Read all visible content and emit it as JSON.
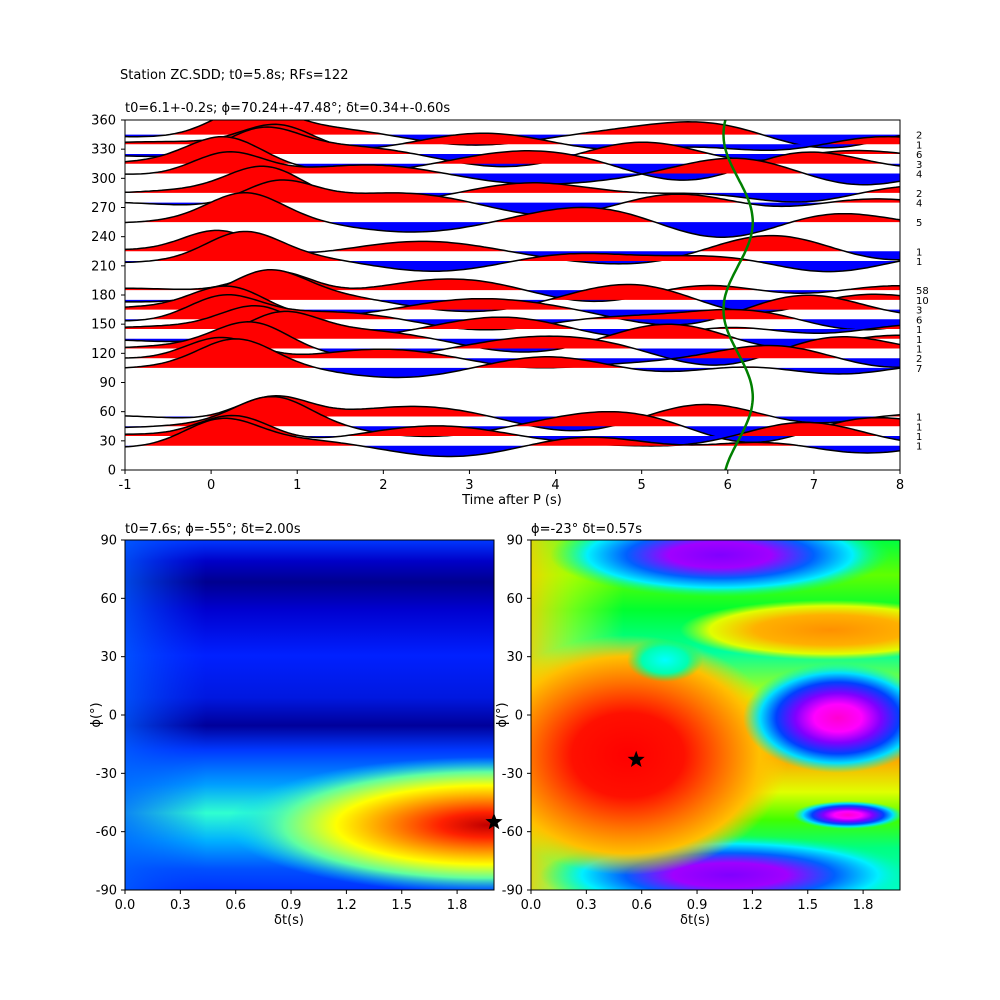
{
  "suptitle": "Station ZC.SDD; t0=5.8s; RFs=122",
  "chart_data": [
    {
      "type": "line",
      "title": "t0=6.1+-0.2s; ϕ=70.24+-47.48°; δt=0.34+-0.60s",
      "xlabel": "Time after P (s)",
      "ylabel": "",
      "xlim": [
        -1,
        8
      ],
      "ylim": [
        0,
        360
      ],
      "xticks": [
        "-1",
        "0",
        "1",
        "2",
        "3",
        "4",
        "5",
        "6",
        "7",
        "8"
      ],
      "yticks": [
        "0",
        "30",
        "60",
        "90",
        "120",
        "150",
        "180",
        "210",
        "240",
        "270",
        "300",
        "330",
        "360"
      ],
      "positive_fill_color": "#ff0000",
      "negative_fill_color": "#0000ff",
      "fit_curve_color": "#008000",
      "traces": [
        {
          "baz": 345,
          "count": "2"
        },
        {
          "baz": 335,
          "count": "1"
        },
        {
          "baz": 325,
          "count": "6"
        },
        {
          "baz": 315,
          "count": "3"
        },
        {
          "baz": 305,
          "count": "4"
        },
        {
          "baz": 285,
          "count": "2"
        },
        {
          "baz": 275,
          "count": "4"
        },
        {
          "baz": 255,
          "count": "5"
        },
        {
          "baz": 225,
          "count": "1"
        },
        {
          "baz": 215,
          "count": "1"
        },
        {
          "baz": 185,
          "count": "58"
        },
        {
          "baz": 175,
          "count": "10"
        },
        {
          "baz": 165,
          "count": "3"
        },
        {
          "baz": 155,
          "count": "6"
        },
        {
          "baz": 145,
          "count": "1"
        },
        {
          "baz": 135,
          "count": "1"
        },
        {
          "baz": 125,
          "count": "1"
        },
        {
          "baz": 115,
          "count": "2"
        },
        {
          "baz": 105,
          "count": "7"
        },
        {
          "baz": 55,
          "count": "1"
        },
        {
          "baz": 45,
          "count": "1"
        },
        {
          "baz": 35,
          "count": "1"
        },
        {
          "baz": 25,
          "count": "1"
        }
      ]
    },
    {
      "type": "heatmap",
      "title": "t0=7.6s; ϕ=-55°; δt=2.00s",
      "xlabel": "δt(s)",
      "ylabel": "ϕ(°)",
      "xlim": [
        0,
        2
      ],
      "ylim": [
        -90,
        90
      ],
      "xticks": [
        "0.0",
        "0.3",
        "0.6",
        "0.9",
        "1.2",
        "1.5",
        "1.8"
      ],
      "yticks": [
        "-90",
        "-60",
        "-30",
        "0",
        "30",
        "60",
        "90"
      ],
      "colormap": "jet",
      "best": {
        "dt": 2.0,
        "phi": -55
      }
    },
    {
      "type": "heatmap",
      "title": "ϕ=-23° δt=0.57s",
      "xlabel": "δt(s)",
      "ylabel": "ϕ(°)",
      "xlim": [
        0,
        2
      ],
      "ylim": [
        -90,
        90
      ],
      "xticks": [
        "0.0",
        "0.3",
        "0.6",
        "0.9",
        "1.2",
        "1.5",
        "1.8"
      ],
      "yticks": [
        "-90",
        "-60",
        "-30",
        "0",
        "30",
        "60",
        "90"
      ],
      "colormap": "hsv",
      "best": {
        "dt": 0.57,
        "phi": -23
      }
    }
  ]
}
